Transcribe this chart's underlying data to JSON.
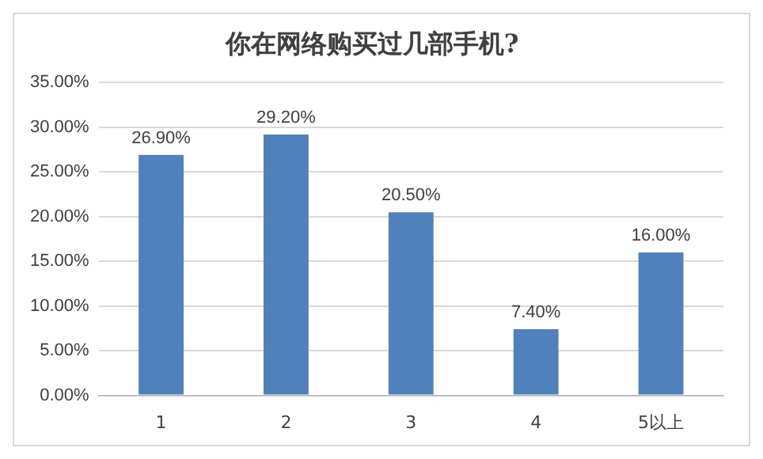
{
  "chart_data": {
    "type": "bar",
    "title": "你在网络购买过几部手机?",
    "categories": [
      "1",
      "2",
      "3",
      "4",
      "5以上"
    ],
    "values": [
      26.9,
      29.2,
      20.5,
      7.4,
      16.0
    ],
    "value_labels": [
      "26.90%",
      "29.20%",
      "20.50%",
      "7.40%",
      "16.00%"
    ],
    "color": "#4f81bd",
    "ylim": [
      0,
      35
    ],
    "yticks": [
      {
        "value": 0,
        "label": "0.00%"
      },
      {
        "value": 5,
        "label": "5.00%"
      },
      {
        "value": 10,
        "label": "10.00%"
      },
      {
        "value": 15,
        "label": "15.00%"
      },
      {
        "value": 20,
        "label": "20.00%"
      },
      {
        "value": 25,
        "label": "25.00%"
      },
      {
        "value": 30,
        "label": "30.00%"
      },
      {
        "value": 35,
        "label": "35.00%"
      }
    ],
    "grid": "y",
    "legend": false
  }
}
